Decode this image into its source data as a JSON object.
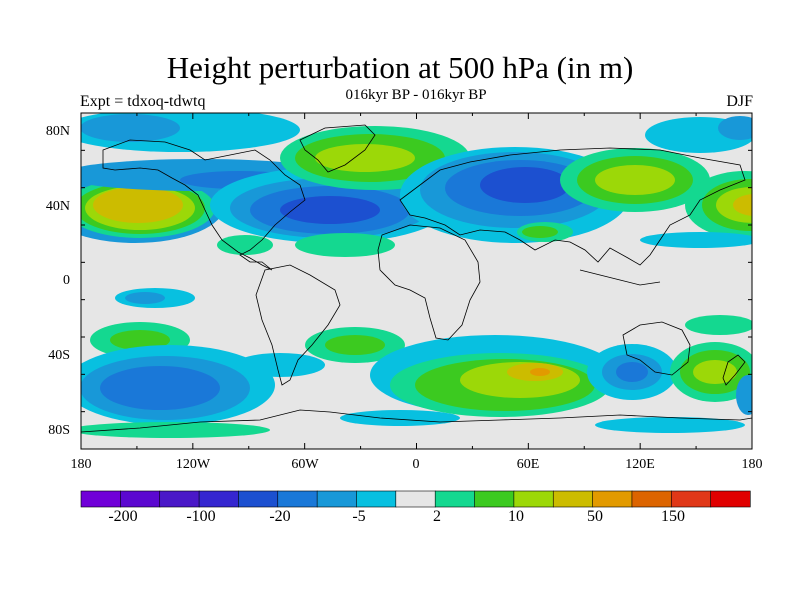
{
  "title": "Height perturbation at 500 hPa (in m)",
  "subtitle": "016kyr BP - 016kyr BP",
  "left_label": "Expt = tdxoq-tdwtq",
  "right_label": "DJF",
  "lat_ticks": [
    "80N",
    "40N",
    "0",
    "40S",
    "80S"
  ],
  "lon_ticks": [
    "180",
    "120W",
    "60W",
    "0",
    "60E",
    "120E",
    "180"
  ],
  "colorbar": {
    "colors": [
      "#7000d8",
      "#5b08d0",
      "#4a18c8",
      "#3526d0",
      "#1c50d0",
      "#1a78d8",
      "#1898d8",
      "#08c0e0",
      "#e6e6e6",
      "#14d890",
      "#3cca20",
      "#9cd808",
      "#ccbc00",
      "#e29a00",
      "#dc6400",
      "#e03818",
      "#e00000"
    ],
    "labels": [
      "-200",
      "-100",
      "-20",
      "-5",
      "2",
      "10",
      "50",
      "150"
    ]
  },
  "chart_data": {
    "type": "heatmap",
    "title": "Height perturbation at 500 hPa (in m)",
    "subtitle": "016kyr BP - 016kyr BP",
    "season": "DJF",
    "experiment": "Expt = tdxoq-tdwtq",
    "x_ticks": [
      "180",
      "120W",
      "60W",
      "0",
      "60E",
      "120E",
      "180"
    ],
    "y_ticks": [
      "80N",
      "40N",
      "0",
      "40S",
      "80S"
    ],
    "xlim": [
      -180,
      180
    ],
    "ylim": [
      -90,
      90
    ],
    "contour_levels": [
      "-200",
      "-100",
      "-20",
      "-5",
      "2",
      "10",
      "50",
      "150"
    ],
    "features": [
      {
        "lon": -150,
        "lat": 42,
        "value": 50
      },
      {
        "lon": -45,
        "lat": 40,
        "value": -20
      },
      {
        "lon": -30,
        "lat": 68,
        "value": 10
      },
      {
        "lon": 60,
        "lat": 54,
        "value": -20
      },
      {
        "lon": 120,
        "lat": 55,
        "value": 10
      },
      {
        "lon": 170,
        "lat": 40,
        "value": 50
      },
      {
        "lon": 60,
        "lat": -48,
        "value": 50
      },
      {
        "lon": 155,
        "lat": -48,
        "value": 10
      },
      {
        "lon": 118,
        "lat": -48,
        "value": -20
      },
      {
        "lon": -150,
        "lat": -55,
        "value": -20
      },
      {
        "lon": -140,
        "lat": -30,
        "value": 10
      }
    ]
  }
}
